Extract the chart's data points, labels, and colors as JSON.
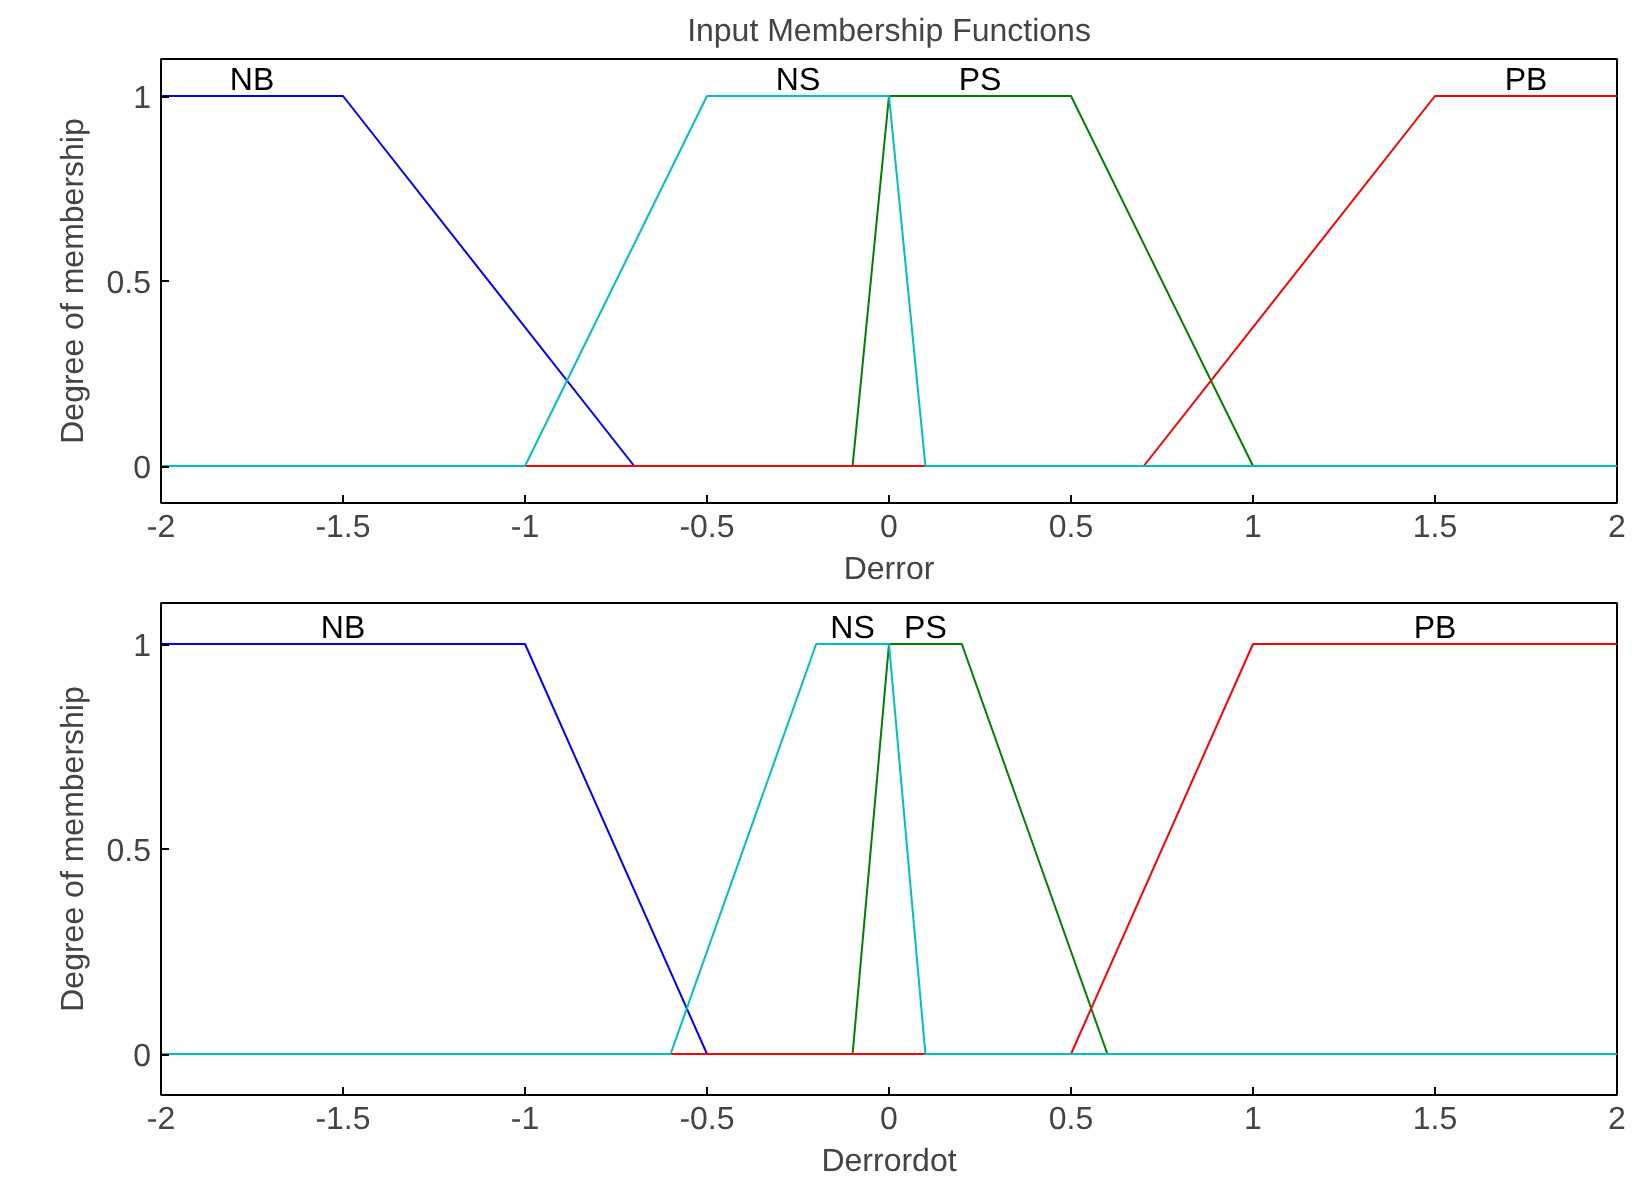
{
  "chart_data": [
    {
      "type": "line",
      "title": "Input Membership Functions",
      "xlabel": "Derror",
      "ylabel": "Degree of membership",
      "xlim": [
        -2,
        2
      ],
      "ylim": [
        -0.1,
        1.1
      ],
      "xticks": [
        -2,
        -1.5,
        -1,
        -0.5,
        0,
        0.5,
        1,
        1.5,
        2
      ],
      "yticks": [
        0,
        0.5,
        1
      ],
      "grid": false,
      "legend": false,
      "marker": "none",
      "line_style": "solid",
      "series": [
        {
          "name": "NB",
          "color": "#0000ff",
          "x": [
            -2,
            -1.5,
            -0.7
          ],
          "values": [
            1,
            1,
            0
          ]
        },
        {
          "name": "PS",
          "color": "#008000",
          "x": [
            -0.1,
            0,
            0.5,
            1
          ],
          "values": [
            0,
            1,
            1,
            0
          ]
        },
        {
          "name": "PB",
          "color": "#ff0000",
          "x": [
            -2,
            0.7,
            1.5,
            2
          ],
          "values": [
            0,
            0,
            1,
            1
          ]
        },
        {
          "name": "NS",
          "color": "#00bfbf",
          "x": [
            -2,
            -1,
            -0.5,
            0,
            0.1,
            2
          ],
          "values": [
            0,
            0,
            1,
            1,
            0,
            0
          ]
        }
      ]
    },
    {
      "type": "line",
      "xlabel": "Derrordot",
      "ylabel": "Degree of membership",
      "xlim": [
        -2,
        2
      ],
      "ylim": [
        -0.1,
        1.1
      ],
      "xticks": [
        -2,
        -1.5,
        -1,
        -0.5,
        0,
        0.5,
        1,
        1.5,
        2
      ],
      "yticks": [
        0,
        0.5,
        1
      ],
      "grid": false,
      "legend": false,
      "marker": "none",
      "line_style": "solid",
      "series": [
        {
          "name": "NB",
          "color": "#0000ff",
          "x": [
            -2,
            -1,
            -0.5
          ],
          "values": [
            1,
            1,
            0
          ]
        },
        {
          "name": "PS",
          "color": "#008000",
          "x": [
            -0.1,
            0,
            0.2,
            0.6
          ],
          "values": [
            0,
            1,
            1,
            0
          ]
        },
        {
          "name": "PB",
          "color": "#ff0000",
          "x": [
            -2,
            0.5,
            1,
            2
          ],
          "values": [
            0,
            0,
            1,
            1
          ]
        },
        {
          "name": "NS",
          "color": "#00bfbf",
          "x": [
            -2,
            -0.6,
            -0.2,
            0,
            0.1,
            2
          ],
          "values": [
            0,
            0,
            1,
            1,
            0,
            0
          ]
        }
      ]
    }
  ]
}
